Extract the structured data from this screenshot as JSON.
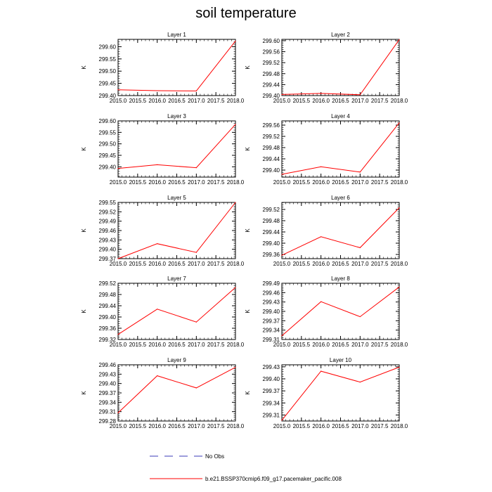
{
  "title": "soil temperature",
  "colors": {
    "series": "#ff0000",
    "noobs": "#3b3bb8",
    "axis": "#000000"
  },
  "legend": {
    "no_obs": "No Obs",
    "model": "b.e21.BSSP370cmip6.f09_g17.pacemaker_pacific.008"
  },
  "chart_data": [
    {
      "type": "line",
      "title": "Layer 1",
      "ylabel": "K",
      "x": [
        2015.0,
        2016.0,
        2017.0,
        2018.0
      ],
      "values": [
        299.424,
        299.42,
        299.419,
        299.623
      ],
      "xlim": [
        2015.0,
        2018.0
      ],
      "ylim": [
        299.4,
        299.63
      ],
      "yticks": [
        "299.40",
        "299.45",
        "299.50",
        "299.55",
        "299.60"
      ],
      "xticks": [
        "2015.0",
        "2015.5",
        "2016.0",
        "2016.5",
        "2017.0",
        "2017.5",
        "2018.0"
      ]
    },
    {
      "type": "line",
      "title": "Layer 2",
      "ylabel": "K",
      "x": [
        2015.0,
        2016.0,
        2017.0,
        2018.0
      ],
      "values": [
        299.404,
        299.408,
        299.403,
        299.604
      ],
      "xlim": [
        2015.0,
        2018.0
      ],
      "ylim": [
        299.4,
        299.605
      ],
      "yticks": [
        "299.40",
        "299.44",
        "299.48",
        "299.52",
        "299.56",
        "299.60"
      ],
      "xticks": [
        "2015.0",
        "2015.5",
        "2016.0",
        "2016.5",
        "2017.0",
        "2017.5",
        "2018.0"
      ]
    },
    {
      "type": "line",
      "title": "Layer 3",
      "ylabel": "K",
      "x": [
        2015.0,
        2016.0,
        2017.0,
        2018.0
      ],
      "values": [
        299.393,
        299.409,
        299.396,
        299.585
      ],
      "xlim": [
        2015.0,
        2018.0
      ],
      "ylim": [
        299.355,
        299.6
      ],
      "yticks": [
        "299.40",
        "299.45",
        "299.50",
        "299.55",
        "299.60"
      ],
      "xticks": [
        "2015.0",
        "2015.5",
        "2016.0",
        "2016.5",
        "2017.0",
        "2017.5",
        "2018.0"
      ]
    },
    {
      "type": "line",
      "title": "Layer 4",
      "ylabel": "K",
      "x": [
        2015.0,
        2016.0,
        2017.0,
        2018.0
      ],
      "values": [
        299.385,
        299.412,
        299.393,
        299.568
      ],
      "xlim": [
        2015.0,
        2018.0
      ],
      "ylim": [
        299.375,
        299.575
      ],
      "yticks": [
        "299.40",
        "299.44",
        "299.48",
        "299.52",
        "299.56"
      ],
      "xticks": [
        "2015.0",
        "2015.5",
        "2016.0",
        "2016.5",
        "2017.0",
        "2017.5",
        "2018.0"
      ]
    },
    {
      "type": "line",
      "title": "Layer 5",
      "ylabel": "K",
      "x": [
        2015.0,
        2016.0,
        2017.0,
        2018.0
      ],
      "values": [
        299.37,
        299.418,
        299.39,
        299.55
      ],
      "xlim": [
        2015.0,
        2018.0
      ],
      "ylim": [
        299.37,
        299.55
      ],
      "yticks": [
        "299.37",
        "299.40",
        "299.43",
        "299.46",
        "299.49",
        "299.52",
        "299.55"
      ],
      "xticks": [
        "2015.0",
        "2015.5",
        "2016.0",
        "2016.5",
        "2017.0",
        "2017.5",
        "2018.0"
      ]
    },
    {
      "type": "line",
      "title": "Layer 6",
      "ylabel": "K",
      "x": [
        2015.0,
        2016.0,
        2017.0,
        2018.0
      ],
      "values": [
        299.357,
        299.423,
        299.384,
        299.526
      ],
      "xlim": [
        2015.0,
        2018.0
      ],
      "ylim": [
        299.345,
        299.545
      ],
      "yticks": [
        "299.36",
        "299.40",
        "299.44",
        "299.48",
        "299.52"
      ],
      "xticks": [
        "2015.0",
        "2015.5",
        "2016.0",
        "2016.5",
        "2017.0",
        "2017.5",
        "2018.0"
      ]
    },
    {
      "type": "line",
      "title": "Layer 7",
      "ylabel": "K",
      "x": [
        2015.0,
        2016.0,
        2017.0,
        2018.0
      ],
      "values": [
        299.338,
        299.428,
        299.382,
        299.505
      ],
      "xlim": [
        2015.0,
        2018.0
      ],
      "ylim": [
        299.32,
        299.52
      ],
      "yticks": [
        "299.32",
        "299.36",
        "299.40",
        "299.44",
        "299.48",
        "299.52"
      ],
      "xticks": [
        "2015.0",
        "2015.5",
        "2016.0",
        "2016.5",
        "2017.0",
        "2017.5",
        "2018.0"
      ]
    },
    {
      "type": "line",
      "title": "Layer 8",
      "ylabel": "K",
      "x": [
        2015.0,
        2016.0,
        2017.0,
        2018.0
      ],
      "values": [
        299.322,
        299.431,
        299.383,
        299.478
      ],
      "xlim": [
        2015.0,
        2018.0
      ],
      "ylim": [
        299.31,
        299.49
      ],
      "yticks": [
        "299.31",
        "299.34",
        "299.37",
        "299.40",
        "299.43",
        "299.46",
        "299.49"
      ],
      "xticks": [
        "2015.0",
        "2015.5",
        "2016.0",
        "2016.5",
        "2017.0",
        "2017.5",
        "2018.0"
      ]
    },
    {
      "type": "line",
      "title": "Layer 9",
      "ylabel": "K",
      "x": [
        2015.0,
        2016.0,
        2017.0,
        2018.0
      ],
      "values": [
        299.306,
        299.425,
        299.386,
        299.452
      ],
      "xlim": [
        2015.0,
        2018.0
      ],
      "ylim": [
        299.28,
        299.46
      ],
      "yticks": [
        "299.28",
        "299.31",
        "299.34",
        "299.37",
        "299.40",
        "299.43",
        "299.46"
      ],
      "xticks": [
        "2015.0",
        "2015.5",
        "2016.0",
        "2016.5",
        "2017.0",
        "2017.5",
        "2018.0"
      ]
    },
    {
      "type": "line",
      "title": "Layer 10",
      "ylabel": "K",
      "x": [
        2015.0,
        2016.0,
        2017.0,
        2018.0
      ],
      "values": [
        299.297,
        299.419,
        299.392,
        299.429
      ],
      "xlim": [
        2015.0,
        2018.0
      ],
      "ylim": [
        299.295,
        299.435
      ],
      "yticks": [
        "299.31",
        "299.34",
        "299.37",
        "299.40",
        "299.43"
      ],
      "xticks": [
        "2015.0",
        "2015.5",
        "2016.0",
        "2016.5",
        "2017.0",
        "2017.5",
        "2018.0"
      ]
    }
  ]
}
